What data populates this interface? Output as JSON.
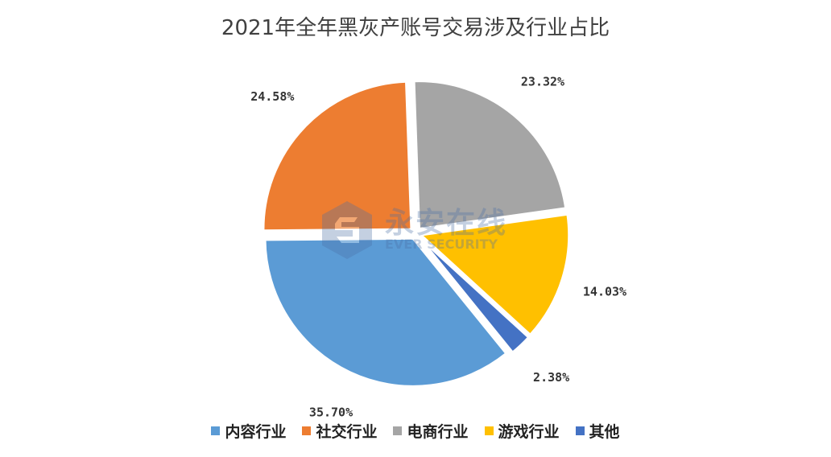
{
  "chart_data": {
    "type": "pie",
    "title": "2021年全年黑灰产账号交易涉及行业占比",
    "categories": [
      "内容行业",
      "社交行业",
      "电商行业",
      "游戏行业",
      "其他"
    ],
    "values": [
      35.7,
      24.58,
      23.32,
      14.03,
      2.38
    ],
    "labels": [
      "35.70%",
      "24.58%",
      "23.32%",
      "14.03%",
      "2.38%"
    ],
    "colors": [
      "#5B9BD5",
      "#ED7D31",
      "#A5A5A5",
      "#FFC000",
      "#4472C4"
    ],
    "legend_position": "bottom",
    "exploded": "all"
  },
  "watermark": {
    "text_cn": "永安在线",
    "text_en": "EVER SECURITY",
    "icon": "shield-s-logo-icon"
  }
}
